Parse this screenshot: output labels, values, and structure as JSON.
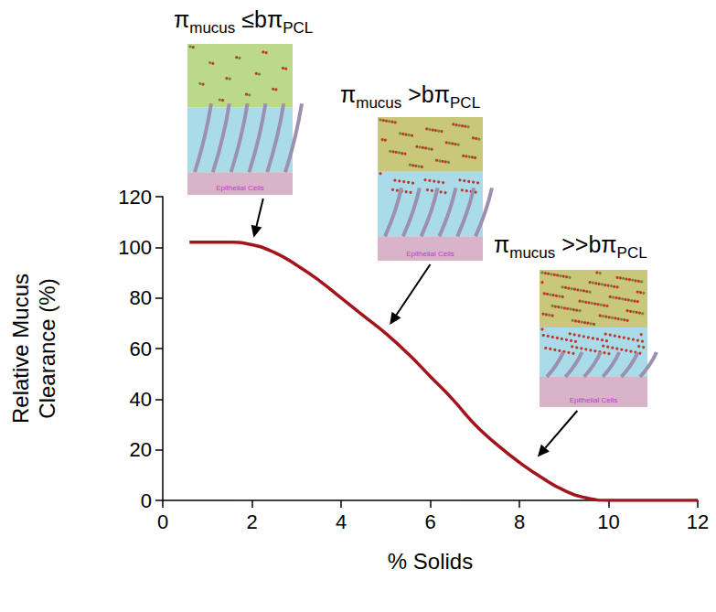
{
  "chart_data": {
    "type": "line",
    "x_label": "% Solids",
    "y_label": "Relative Mucus\nClearance (%)",
    "x": [
      0.6,
      1,
      1.5,
      2,
      2.5,
      3,
      3.5,
      4,
      4.5,
      5,
      5.5,
      6,
      6.5,
      7,
      7.5,
      8,
      8.5,
      9,
      9.5,
      10,
      10.5,
      11,
      11.5,
      12
    ],
    "values": [
      102,
      102,
      102,
      101,
      98,
      93,
      87,
      80,
      73,
      66,
      58,
      49,
      40,
      30,
      22,
      15,
      9,
      4,
      1,
      0,
      0,
      0,
      0,
      0
    ],
    "color": "#a3151d",
    "xlim": [
      0,
      12
    ],
    "xticks": [
      0,
      2,
      4,
      6,
      8,
      10,
      12
    ],
    "ylim": [
      0,
      120
    ],
    "yticks": [
      0,
      20,
      40,
      60,
      80,
      100,
      120
    ],
    "grid": false,
    "annotations": [
      {
        "label": [
          {
            "text": "π"
          },
          {
            "text": "mucus",
            "sub": true
          },
          {
            "text": " ≤bπ"
          },
          {
            "text": "PCL",
            "sub": true
          }
        ],
        "panel_label": "Epithelial Cells",
        "x": 2,
        "y": 101
      },
      {
        "label": [
          {
            "text": "π"
          },
          {
            "text": "mucus",
            "sub": true
          },
          {
            "text": " >bπ"
          },
          {
            "text": "PCL",
            "sub": true
          }
        ],
        "panel_label": "Epithelial Cells",
        "x": 5,
        "y": 67
      },
      {
        "label": [
          {
            "text": "π"
          },
          {
            "text": "mucus",
            "sub": true
          },
          {
            "text": " >>bπ"
          },
          {
            "text": "PCL",
            "sub": true
          }
        ],
        "panel_label": "Epithelial Cells",
        "x": 8.3,
        "y": 15
      }
    ]
  }
}
